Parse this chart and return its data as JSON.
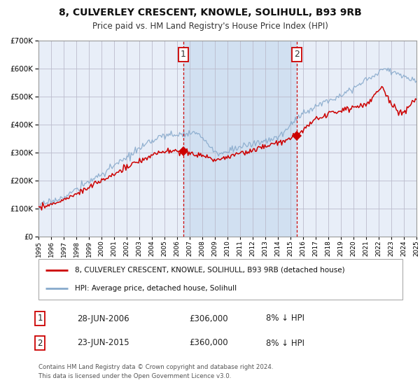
{
  "title": "8, CULVERLEY CRESCENT, KNOWLE, SOLIHULL, B93 9RB",
  "subtitle": "Price paid vs. HM Land Registry's House Price Index (HPI)",
  "legend_label_red": "8, CULVERLEY CRESCENT, KNOWLE, SOLIHULL, B93 9RB (detached house)",
  "legend_label_blue": "HPI: Average price, detached house, Solihull",
  "footnote": "Contains HM Land Registry data © Crown copyright and database right 2024.\nThis data is licensed under the Open Government Licence v3.0.",
  "transaction1_date": "28-JUN-2006",
  "transaction1_price": "£306,000",
  "transaction1_hpi": "8% ↓ HPI",
  "transaction2_date": "23-JUN-2015",
  "transaction2_price": "£360,000",
  "transaction2_hpi": "8% ↓ HPI",
  "vline1_x": 2006.5,
  "vline2_x": 2015.5,
  "sale1_year": 2006.5,
  "sale1_price": 306000,
  "sale2_year": 2015.5,
  "sale2_price": 360000,
  "ylim": [
    0,
    700000
  ],
  "xlim": [
    1995,
    2025
  ],
  "background_color": "#ffffff",
  "chart_bg": "#e8eef8",
  "grid_color": "#bbbbcc",
  "red_color": "#cc0000",
  "blue_color": "#88aacc",
  "vline_color": "#cc0000",
  "shade_color": "#ccddf0"
}
